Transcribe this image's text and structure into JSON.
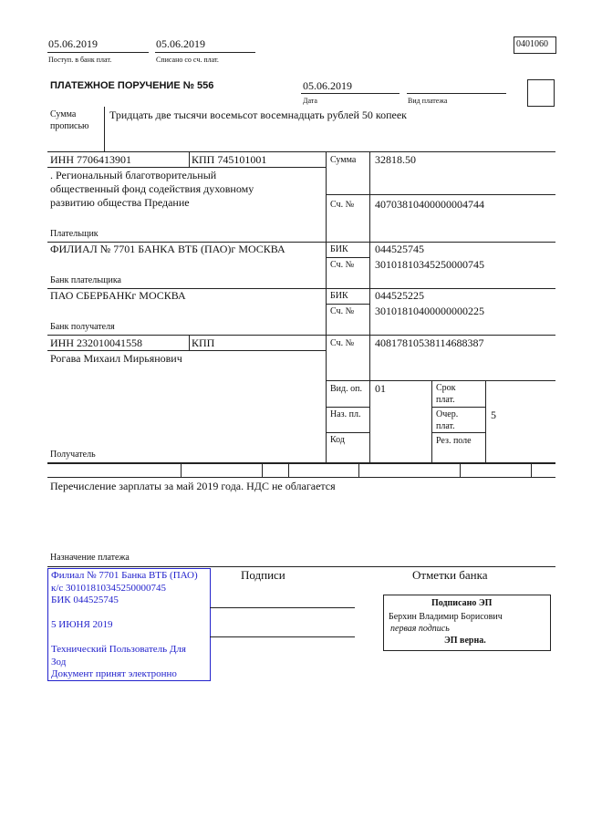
{
  "header": {
    "received_date": "05.06.2019",
    "received_label": "Поступ. в банк плат.",
    "debited_date": "05.06.2019",
    "debited_label": "Списано со сч. плат.",
    "form_code": "0401060"
  },
  "title": "ПЛАТЕЖНОЕ ПОРУЧЕНИЕ № 556",
  "date": {
    "value": "05.06.2019",
    "label": "Дата"
  },
  "payment_type": {
    "value": "",
    "label": "Вид платежа"
  },
  "amount_words": {
    "label1": "Сумма",
    "label2": "прописью",
    "value": "Тридцать две тысячи восемьсот восемнадцать рублей 50 копеек"
  },
  "payer": {
    "inn": "ИНН 7706413901",
    "kpp": "КПП 745101001",
    "name_lines": [
      ". Региональный благотворительный",
      "общественный фонд содействия духовному",
      "развитию общества Предание"
    ],
    "label": "Плательщик"
  },
  "amount": {
    "label": "Сумма",
    "value": "32818.50"
  },
  "payer_account": {
    "label": "Сч. №",
    "value": "40703810400000004744"
  },
  "payer_bank": {
    "name": "ФИЛИАЛ № 7701 БАНКА ВТБ (ПАО)г МОСКВА",
    "label": "Банк плательщика",
    "bik_label": "БИК",
    "bik": "044525745",
    "acc_label": "Сч. №",
    "acc": "30101810345250000745"
  },
  "recipient_bank": {
    "name": "ПАО СБЕРБАНКг МОСКВА",
    "label": "Банк получателя",
    "bik_label": "БИК",
    "bik": "044525225",
    "acc_label": "Сч. №",
    "acc": "30101810400000000225"
  },
  "recipient": {
    "inn": "ИНН 232010041558",
    "kpp": "КПП",
    "name": "Рогава Михаил Мирьянович",
    "label": "Получатель",
    "acc_label": "Сч. №",
    "acc": "40817810538114688387"
  },
  "codes": {
    "vid_op_label": "Вид. оп.",
    "vid_op": "01",
    "naz_pl_label": "Наз. пл.",
    "kod_label": "Код",
    "srok_label1": "Срок",
    "srok_label2": "плат.",
    "ocher_label1": "Очер.",
    "ocher_label2": "плат.",
    "ocher": "5",
    "rez_label": "Рез. поле"
  },
  "purpose": {
    "text": "Перечисление зарплаты за май 2019 года. НДС не облагается",
    "label": "Назначение платежа"
  },
  "stamp": {
    "lines": [
      "Филиал № 7701 Банка ВТБ (ПАО)",
      "к/с 30101810345250000745",
      "БИК 044525745",
      "",
      "5 ИЮНЯ 2019",
      "",
      "Технический Пользователь Для",
      "Зод",
      "Документ принят электронно"
    ],
    "color": "#2222cc"
  },
  "signatures_label": "Подписи",
  "bank_marks": {
    "label": "Отметки банка",
    "signed": "Подписано ЭП",
    "signer": "Берхин Владимир Борисович",
    "sign_type": "первая подпись",
    "verified": "ЭП верна."
  }
}
